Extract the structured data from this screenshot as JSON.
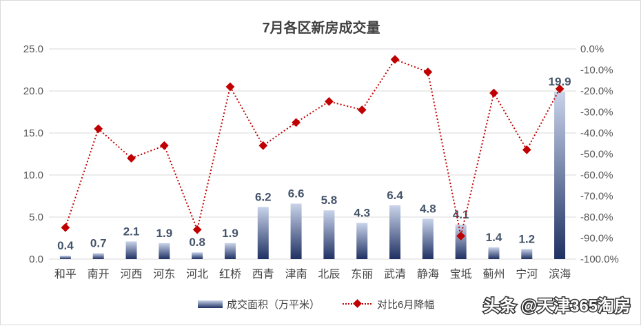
{
  "chart_data": {
    "type": "bar",
    "title": "7月各区新房成交量",
    "categories": [
      "和平",
      "南开",
      "河西",
      "河东",
      "河北",
      "红桥",
      "西青",
      "津南",
      "北辰",
      "东丽",
      "武清",
      "静海",
      "宝坻",
      "蓟州",
      "宁河",
      "滨海"
    ],
    "series": [
      {
        "name": "成交面积（万平米）",
        "type": "bar",
        "axis": "left",
        "values": [
          0.4,
          0.7,
          2.1,
          1.9,
          0.8,
          1.9,
          6.2,
          6.6,
          5.8,
          4.3,
          6.4,
          4.8,
          4.1,
          1.4,
          1.2,
          19.9
        ],
        "labels": [
          "0.4",
          "0.7",
          "2.1",
          "1.9",
          "0.8",
          "1.9",
          "6.2",
          "6.6",
          "5.8",
          "4.3",
          "6.4",
          "4.8",
          "4.1",
          "1.4",
          "1.2",
          "19.9"
        ]
      },
      {
        "name": "对比6月降幅",
        "type": "line",
        "axis": "right",
        "values": [
          -85,
          -38,
          -52,
          -46,
          -86,
          -18,
          -46,
          -35,
          -25,
          -29,
          -5,
          -11,
          -89,
          -21,
          -48,
          -19
        ]
      }
    ],
    "y_left": {
      "min": 0,
      "max": 25,
      "ticks": [
        "0.0",
        "5.0",
        "10.0",
        "15.0",
        "20.0",
        "25.0"
      ]
    },
    "y_right": {
      "min": -100,
      "max": 0,
      "ticks": [
        "0.0%",
        "-10.0%",
        "-20.0%",
        "-30.0%",
        "-40.0%",
        "-50.0%",
        "-60.0%",
        "-70.0%",
        "-80.0%",
        "-90.0%",
        "-100.0%"
      ]
    },
    "grid": true,
    "legend": "bottom-center",
    "colors": {
      "bar_top": "#c9d3ea",
      "bar_bottom": "#1f3163",
      "line": "#c00000",
      "grid": "#d9d9d9"
    }
  },
  "watermark": "头条 @天津365淘房"
}
